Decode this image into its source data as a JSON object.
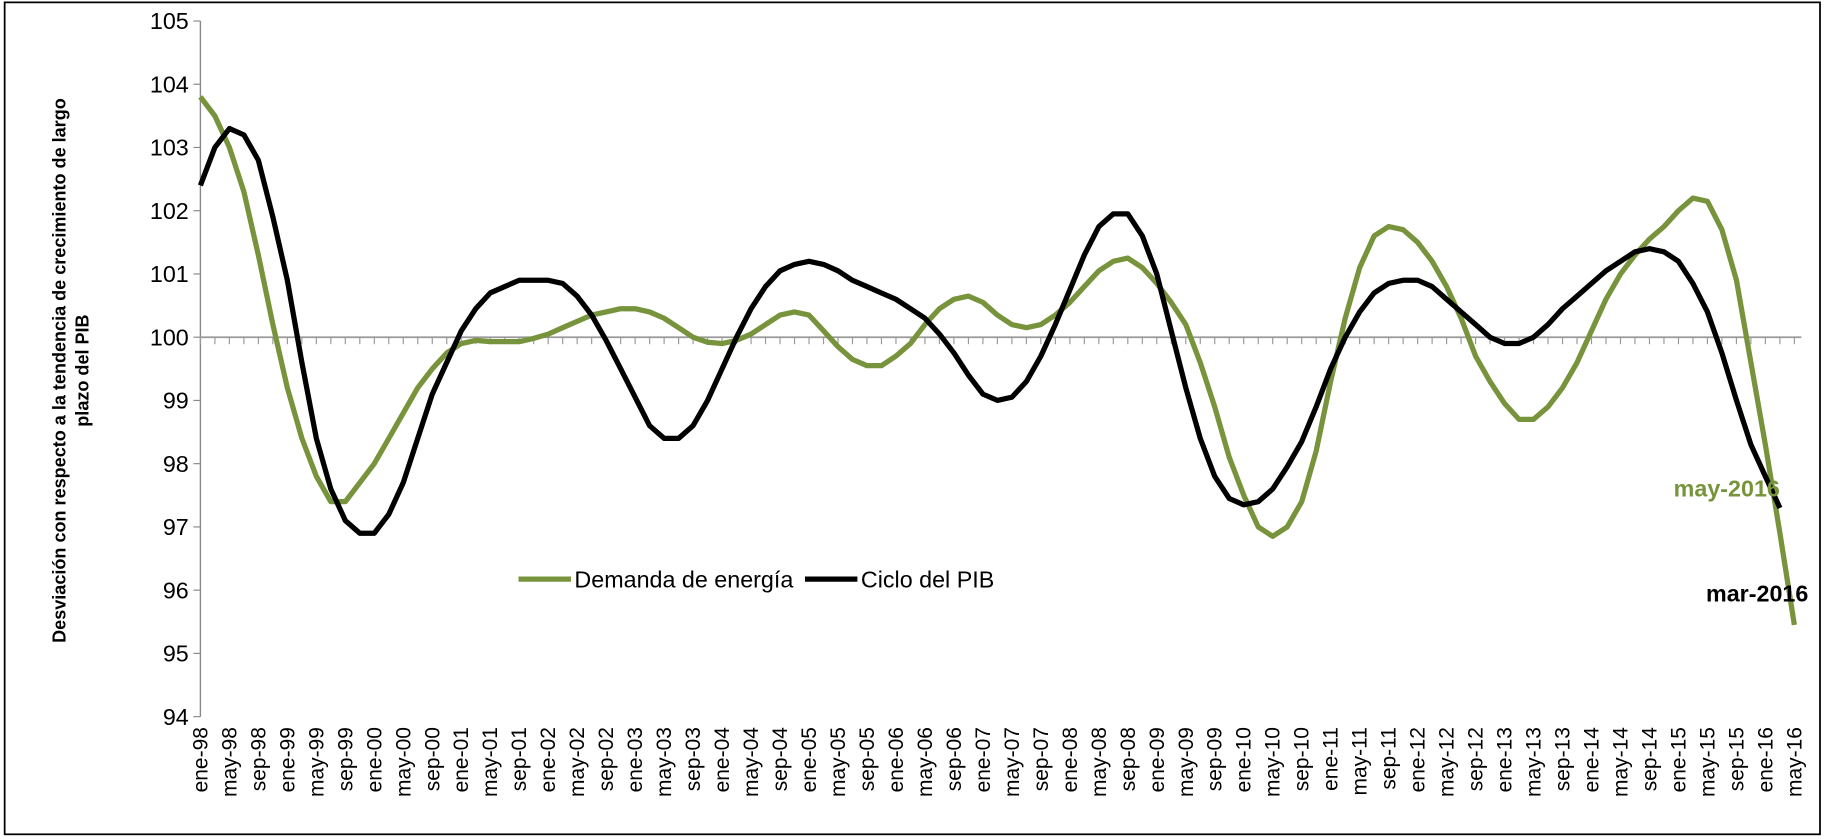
{
  "chart_data": {
    "type": "line",
    "y_label": [
      "Desviación con respecto a la tendencia de crecimiento de largo",
      "plazo del PIB"
    ],
    "categories": [
      "ene-98",
      null,
      "may-98",
      null,
      "sep-98",
      null,
      "ene-99",
      null,
      "may-99",
      null,
      "sep-99",
      null,
      "ene-00",
      null,
      "may-00",
      null,
      "sep-00",
      null,
      "ene-01",
      null,
      "may-01",
      null,
      "sep-01",
      null,
      "ene-02",
      null,
      "may-02",
      null,
      "sep-02",
      null,
      "ene-03",
      null,
      "may-03",
      null,
      "sep-03",
      null,
      "ene-04",
      null,
      "may-04",
      null,
      "sep-04",
      null,
      "ene-05",
      null,
      "may-05",
      null,
      "sep-05",
      null,
      "ene-06",
      null,
      "may-06",
      null,
      "sep-06",
      null,
      "ene-07",
      null,
      "may-07",
      null,
      "sep-07",
      null,
      "ene-08",
      null,
      "may-08",
      null,
      "sep-08",
      null,
      "ene-09",
      null,
      "may-09",
      null,
      "sep-09",
      null,
      "ene-10",
      null,
      "may-10",
      null,
      "sep-10",
      null,
      "ene-11",
      null,
      "may-11",
      null,
      "sep-11",
      null,
      "ene-12",
      null,
      "may-12",
      null,
      "sep-12",
      null,
      "ene-13",
      null,
      "may-13",
      null,
      "sep-13",
      null,
      "ene-14",
      null,
      "may-14",
      null,
      "sep-14",
      null,
      "ene-15",
      null,
      "may-15",
      null,
      "sep-15",
      null,
      "ene-16",
      null,
      "may-16"
    ],
    "series": [
      {
        "name": "Demanda de energía",
        "color": "#77933c",
        "values": [
          103.8,
          103.5,
          103.0,
          102.3,
          101.3,
          100.2,
          99.2,
          98.4,
          97.8,
          97.4,
          97.4,
          97.7,
          98.0,
          98.4,
          98.8,
          99.2,
          99.5,
          99.75,
          99.9,
          99.95,
          99.93,
          99.93,
          99.93,
          99.98,
          100.05,
          100.15,
          100.25,
          100.35,
          100.4,
          100.45,
          100.45,
          100.4,
          100.3,
          100.15,
          100.0,
          99.92,
          99.9,
          99.95,
          100.05,
          100.2,
          100.35,
          100.4,
          100.35,
          100.1,
          99.85,
          99.65,
          99.55,
          99.55,
          99.7,
          99.9,
          100.2,
          100.45,
          100.6,
          100.65,
          100.55,
          100.35,
          100.2,
          100.15,
          100.2,
          100.35,
          100.55,
          100.8,
          101.05,
          101.2,
          101.25,
          101.1,
          100.85,
          100.55,
          100.2,
          99.6,
          98.9,
          98.1,
          97.5,
          97.0,
          96.85,
          97.0,
          97.4,
          98.2,
          99.3,
          100.3,
          101.1,
          101.6,
          101.75,
          101.7,
          101.5,
          101.2,
          100.8,
          100.3,
          99.7,
          99.3,
          98.95,
          98.7,
          98.7,
          98.9,
          99.2,
          99.6,
          100.1,
          100.6,
          101.0,
          101.3,
          101.55,
          101.75,
          102.0,
          102.2,
          102.15,
          101.7,
          100.9,
          99.6,
          98.3,
          96.9,
          95.45
        ]
      },
      {
        "name": "Ciclo del PIB",
        "color": "#000000",
        "values": [
          102.4,
          103.0,
          103.3,
          103.2,
          102.8,
          101.9,
          100.9,
          99.6,
          98.4,
          97.6,
          97.1,
          96.9,
          96.9,
          97.2,
          97.7,
          98.4,
          99.1,
          99.6,
          100.1,
          100.45,
          100.7,
          100.8,
          100.9,
          100.9,
          100.9,
          100.85,
          100.65,
          100.35,
          99.95,
          99.5,
          99.05,
          98.6,
          98.4,
          98.4,
          98.6,
          99.0,
          99.5,
          100.0,
          100.45,
          100.8,
          101.05,
          101.15,
          101.2,
          101.15,
          101.05,
          100.9,
          100.8,
          100.7,
          100.6,
          100.45,
          100.3,
          100.05,
          99.75,
          99.4,
          99.1,
          99.0,
          99.05,
          99.3,
          99.7,
          100.2,
          100.75,
          101.3,
          101.75,
          101.95,
          101.95,
          101.6,
          101.0,
          100.1,
          99.2,
          98.4,
          97.8,
          97.45,
          97.35,
          97.4,
          97.6,
          97.95,
          98.35,
          98.9,
          99.5,
          100.0,
          100.4,
          100.7,
          100.85,
          100.9,
          100.9,
          100.8,
          100.6,
          100.4,
          100.2,
          100.0,
          99.9,
          99.9,
          100.0,
          100.2,
          100.45,
          100.65,
          100.85,
          101.05,
          101.2,
          101.35,
          101.4,
          101.35,
          101.2,
          100.85,
          100.4,
          99.75,
          99.0,
          98.3,
          97.8,
          97.3,
          null
        ]
      }
    ],
    "annotations": [
      {
        "text": "mar-2016",
        "color": "#000000"
      },
      {
        "text": "may-2016",
        "color": "#77933c"
      }
    ],
    "ylim": [
      94,
      105
    ],
    "yticks": [
      94,
      95,
      96,
      97,
      98,
      99,
      100,
      101,
      102,
      103,
      104,
      105
    ],
    "x_axis_at": 100,
    "grid": false,
    "legend": "center"
  }
}
